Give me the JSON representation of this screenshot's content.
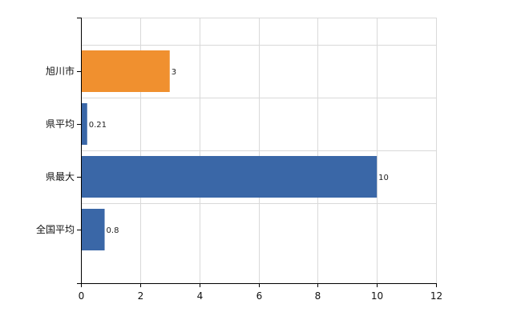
{
  "chart_data": {
    "type": "bar",
    "orientation": "horizontal",
    "categories": [
      "旭川市",
      "県平均",
      "県最大",
      "全国平均"
    ],
    "values": [
      3,
      0.21,
      10,
      0.8
    ],
    "value_labels": [
      "3",
      "0.21",
      "10",
      "0.8"
    ],
    "bar_colors": [
      "#f0902f",
      "#3a67a7",
      "#3a67a7",
      "#3a67a7"
    ],
    "title": "",
    "xlabel": "",
    "ylabel": "",
    "xlim": [
      0,
      12
    ],
    "x_ticks": [
      0,
      2,
      4,
      6,
      8,
      10,
      12
    ],
    "x_tick_labels": [
      "0",
      "2",
      "4",
      "6",
      "8",
      "10",
      "12"
    ],
    "grid": true,
    "legend": "none"
  }
}
